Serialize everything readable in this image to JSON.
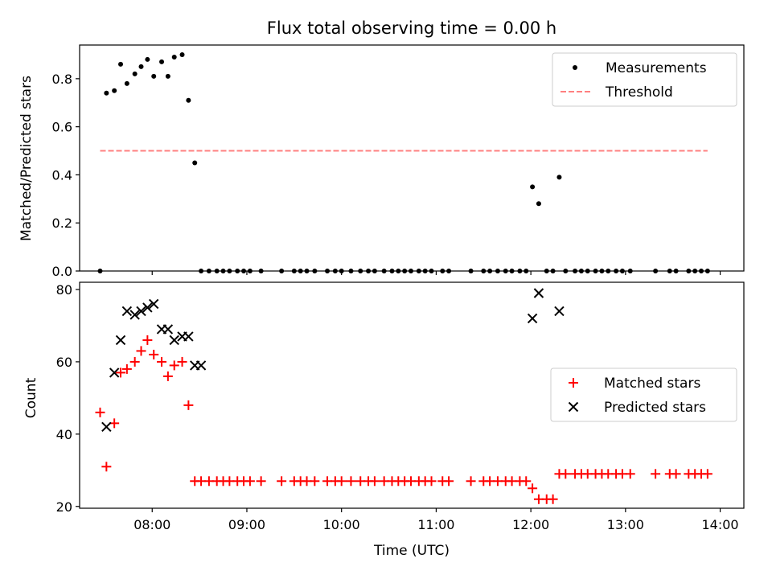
{
  "chart_data": [
    {
      "type": "scatter",
      "title": "Flux total observing time = 0.00 h",
      "xlabel": "",
      "ylabel": "Matched/Predicted stars",
      "xlim": [
        "07:14",
        "14:15"
      ],
      "ylim": [
        0,
        0.94
      ],
      "x_tick_labels": [
        "08:00",
        "09:00",
        "10:00",
        "11:00",
        "12:00",
        "13:00",
        "14:00"
      ],
      "y_ticks": [
        0.0,
        0.2,
        0.4,
        0.6,
        0.8
      ],
      "y_tick_labels": [
        "0.0",
        "0.2",
        "0.4",
        "0.6",
        "0.8"
      ],
      "legend_position": "top-right",
      "grid": false,
      "series": [
        {
          "name": "Measurements",
          "kind": "points",
          "color": "#000000",
          "x": [
            "07:27",
            "07:31",
            "07:36",
            "07:40",
            "07:44",
            "07:49",
            "07:53",
            "07:57",
            "08:01",
            "08:06",
            "08:10",
            "08:14",
            "08:19",
            "08:23",
            "08:27",
            "08:31",
            "08:36",
            "08:41",
            "08:45",
            "08:49",
            "08:54",
            "08:58",
            "09:02",
            "09:09",
            "09:22",
            "09:30",
            "09:34",
            "09:38",
            "09:43",
            "09:51",
            "09:56",
            "10:00",
            "10:06",
            "10:12",
            "10:17",
            "10:21",
            "10:27",
            "10:32",
            "10:36",
            "10:40",
            "10:44",
            "10:49",
            "10:53",
            "10:57",
            "11:04",
            "11:08",
            "11:22",
            "11:30",
            "11:34",
            "11:39",
            "11:44",
            "11:48",
            "11:53",
            "11:57",
            "12:01",
            "12:05",
            "12:10",
            "12:14",
            "12:18",
            "12:22",
            "12:28",
            "12:32",
            "12:36",
            "12:41",
            "12:45",
            "12:49",
            "12:54",
            "12:58",
            "13:03",
            "13:19",
            "13:28",
            "13:32",
            "13:40",
            "13:44",
            "13:48",
            "13:52"
          ],
          "y": [
            0.0,
            0.74,
            0.75,
            0.86,
            0.78,
            0.82,
            0.85,
            0.88,
            0.81,
            0.87,
            0.81,
            0.89,
            0.9,
            0.71,
            0.45,
            0.0,
            0.0,
            0.0,
            0.0,
            0.0,
            0.0,
            0.0,
            0.0,
            0.0,
            0.0,
            0.0,
            0.0,
            0.0,
            0.0,
            0.0,
            0.0,
            0.0,
            0.0,
            0.0,
            0.0,
            0.0,
            0.0,
            0.0,
            0.0,
            0.0,
            0.0,
            0.0,
            0.0,
            0.0,
            0.0,
            0.0,
            0.0,
            0.0,
            0.0,
            0.0,
            0.0,
            0.0,
            0.0,
            0.0,
            0.35,
            0.28,
            0.0,
            0.0,
            0.39,
            0.0,
            0.0,
            0.0,
            0.0,
            0.0,
            0.0,
            0.0,
            0.0,
            0.0,
            0.0,
            0.0,
            0.0,
            0.0,
            0.0,
            0.0,
            0.0,
            0.0
          ]
        },
        {
          "name": "Threshold",
          "kind": "dashed-line",
          "color": "#ff8080",
          "x": [
            "07:27",
            "13:52"
          ],
          "y": [
            0.5,
            0.5
          ]
        }
      ]
    },
    {
      "type": "scatter",
      "title": "",
      "xlabel": "Time (UTC)",
      "ylabel": "Count",
      "xlim": [
        "07:14",
        "14:15"
      ],
      "ylim": [
        19.5,
        82
      ],
      "x_tick_labels": [
        "08:00",
        "09:00",
        "10:00",
        "11:00",
        "12:00",
        "13:00",
        "14:00"
      ],
      "y_ticks": [
        20,
        40,
        60,
        80
      ],
      "y_tick_labels": [
        "20",
        "40",
        "60",
        "80"
      ],
      "legend_position": "center-right",
      "grid": false,
      "series": [
        {
          "name": "Matched stars",
          "kind": "plus",
          "color": "#ff0000",
          "x": [
            "07:27",
            "07:31",
            "07:36",
            "07:40",
            "07:44",
            "07:49",
            "07:53",
            "07:57",
            "08:01",
            "08:06",
            "08:10",
            "08:14",
            "08:19",
            "08:23",
            "08:27",
            "08:31",
            "08:36",
            "08:41",
            "08:45",
            "08:49",
            "08:54",
            "08:58",
            "09:02",
            "09:09",
            "09:22",
            "09:30",
            "09:34",
            "09:38",
            "09:43",
            "09:51",
            "09:56",
            "10:00",
            "10:06",
            "10:12",
            "10:17",
            "10:21",
            "10:27",
            "10:32",
            "10:36",
            "10:40",
            "10:44",
            "10:49",
            "10:53",
            "10:57",
            "11:04",
            "11:08",
            "11:22",
            "11:30",
            "11:34",
            "11:39",
            "11:44",
            "11:48",
            "11:53",
            "11:57",
            "12:01",
            "12:05",
            "12:10",
            "12:14",
            "12:18",
            "12:22",
            "12:28",
            "12:32",
            "12:36",
            "12:41",
            "12:45",
            "12:49",
            "12:54",
            "12:58",
            "13:03",
            "13:19",
            "13:28",
            "13:32",
            "13:40",
            "13:44",
            "13:48",
            "13:52"
          ],
          "y": [
            46,
            31,
            43,
            57,
            58,
            60,
            63,
            66,
            62,
            60,
            56,
            59,
            60,
            48,
            27,
            27,
            27,
            27,
            27,
            27,
            27,
            27,
            27,
            27,
            27,
            27,
            27,
            27,
            27,
            27,
            27,
            27,
            27,
            27,
            27,
            27,
            27,
            27,
            27,
            27,
            27,
            27,
            27,
            27,
            27,
            27,
            27,
            27,
            27,
            27,
            27,
            27,
            27,
            27,
            25,
            22,
            22,
            22,
            29,
            29,
            29,
            29,
            29,
            29,
            29,
            29,
            29,
            29,
            29,
            29,
            29,
            29,
            29,
            29,
            29,
            29
          ]
        },
        {
          "name": "Predicted stars",
          "kind": "cross",
          "color": "#000000",
          "x": [
            "07:31",
            "07:36",
            "07:40",
            "07:44",
            "07:49",
            "07:53",
            "07:57",
            "08:01",
            "08:06",
            "08:10",
            "08:14",
            "08:19",
            "08:23",
            "08:27",
            "08:31",
            "12:01",
            "12:05",
            "12:18"
          ],
          "y": [
            42,
            57,
            66,
            74,
            73,
            74,
            75,
            76,
            69,
            69,
            66,
            67,
            67,
            59,
            59,
            72,
            79,
            74
          ]
        }
      ]
    }
  ]
}
